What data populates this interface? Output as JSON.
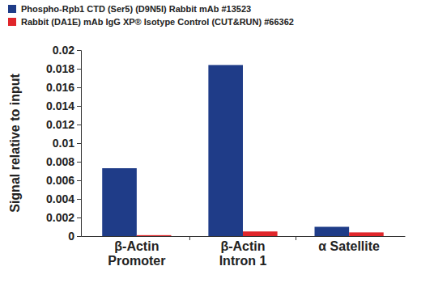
{
  "chart_data": {
    "type": "bar",
    "categories": [
      "β-Actin\nPromoter",
      "β-Actin\nIntron 1",
      "α Satellite"
    ],
    "series": [
      {
        "name": "Phospho-Rpb1 CTD (Ser5) (D9N5I) Rabbit mAb #13523",
        "color": "#1f3c88",
        "values": [
          0.0073,
          0.0184,
          0.001
        ]
      },
      {
        "name": "Rabbit (DA1E) mAb IgG XP® Isotype Control (CUT&RUN) #66362",
        "color": "#e0262b",
        "values": [
          0.0001,
          0.0005,
          0.0004
        ]
      }
    ],
    "y_label": "Signal relative to input",
    "ylim": [
      0,
      0.02
    ],
    "yticks": [
      0,
      0.002,
      0.004,
      0.006,
      0.008,
      0.01,
      0.012,
      0.014,
      0.016,
      0.018,
      0.02
    ],
    "grid": false,
    "legend": "upper left"
  }
}
